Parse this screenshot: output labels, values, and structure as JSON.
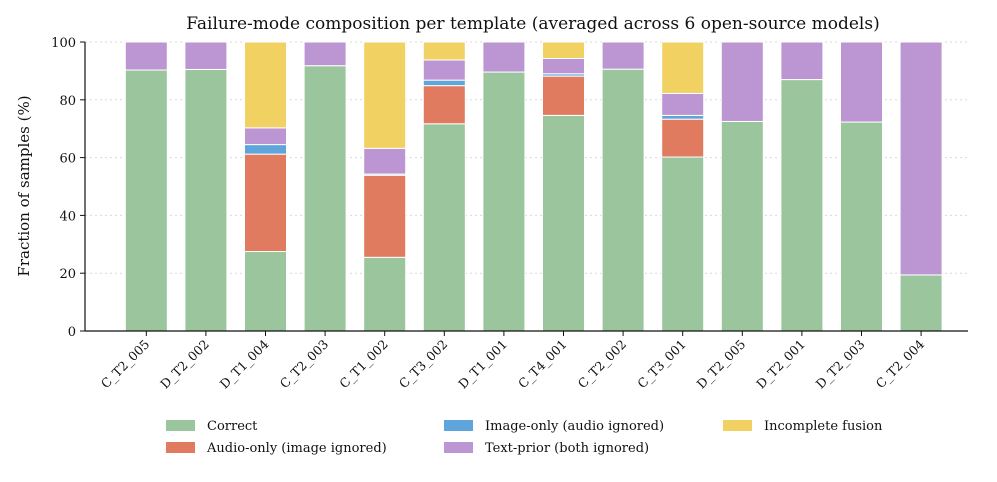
{
  "chart_data": {
    "type": "bar",
    "stacked": true,
    "title": "Failure-mode composition per template (averaged across 6 open-source models)",
    "xlabel": "",
    "ylabel": "Fraction of samples (%)",
    "ylim": [
      0,
      100
    ],
    "yticks": [
      0,
      20,
      40,
      60,
      80,
      100
    ],
    "grid": "horizontal dotted",
    "legend_placement": "bottom",
    "categories": [
      "C_T2_005",
      "D_T2_002",
      "D_T1_004",
      "C_T2_003",
      "C_T1_002",
      "C_T3_002",
      "D_T1_001",
      "C_T4_001",
      "C_T2_002",
      "C_T3_001",
      "D_T2_005",
      "D_T2_001",
      "D_T2_003",
      "C_T2_004"
    ],
    "series": [
      {
        "name": "Correct",
        "color": "#9bc59d",
        "values": [
          90.3,
          90.5,
          27.5,
          91.8,
          25.5,
          71.7,
          89.6,
          74.6,
          90.6,
          60.2,
          72.5,
          87.0,
          72.3,
          19.4
        ]
      },
      {
        "name": "Audio-only (image ignored)",
        "color": "#e07b5f",
        "values": [
          0,
          0,
          33.7,
          0,
          28.4,
          13.2,
          0,
          13.6,
          0,
          13.1,
          0,
          0,
          0,
          0
        ]
      },
      {
        "name": "Image-only (audio ignored)",
        "color": "#5fa5dc",
        "values": [
          0,
          0,
          3.3,
          0,
          0.4,
          1.9,
          0,
          0.8,
          0,
          1.3,
          0,
          0,
          0,
          0
        ]
      },
      {
        "name": "Text-prior (both ignored)",
        "color": "#bc96d2",
        "values": [
          9.7,
          9.5,
          5.8,
          8.2,
          8.9,
          7.0,
          10.4,
          5.3,
          9.4,
          7.6,
          27.5,
          13.0,
          27.7,
          80.6
        ]
      },
      {
        "name": "Incomplete fusion",
        "color": "#f2d163",
        "values": [
          0,
          0,
          29.7,
          0,
          36.8,
          6.2,
          0,
          5.7,
          0,
          17.8,
          0,
          0,
          0,
          0
        ]
      }
    ],
    "legend_order": [
      "Correct",
      "Image-only (audio ignored)",
      "Incomplete fusion",
      "Audio-only (image ignored)",
      "Text-prior (both ignored)"
    ]
  }
}
